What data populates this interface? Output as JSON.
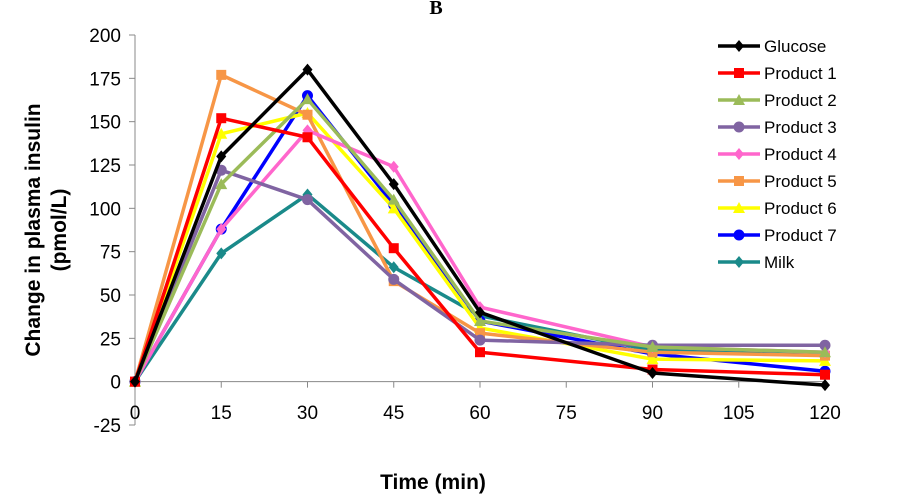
{
  "chart_data": {
    "type": "line",
    "panel_label": "B",
    "xlabel": "Time (min)",
    "ylabel_line1": "Change in plasma insulin",
    "ylabel_line2": "(pmol/L)",
    "x": [
      0,
      15,
      30,
      45,
      60,
      90,
      120
    ],
    "xticks": [
      0,
      15,
      30,
      45,
      60,
      75,
      90,
      105,
      120
    ],
    "yticks": [
      -25,
      0,
      25,
      50,
      75,
      100,
      125,
      150,
      175,
      200
    ],
    "xlim": [
      0,
      120
    ],
    "ylim": [
      -25,
      200
    ],
    "grid": false,
    "legend_position": "top-right",
    "series": [
      {
        "name": "Glucose",
        "color": "#000000",
        "marker": "diamond",
        "values": [
          0,
          130,
          180,
          114,
          40,
          5,
          -2
        ]
      },
      {
        "name": "Product 1",
        "color": "#ff0000",
        "marker": "square",
        "values": [
          0,
          152,
          141,
          77,
          17,
          7,
          4
        ]
      },
      {
        "name": "Product 2",
        "color": "#9bbb59",
        "marker": "triangle",
        "values": [
          0,
          114,
          163,
          105,
          35,
          20,
          17
        ]
      },
      {
        "name": "Product 3",
        "color": "#8064a2",
        "marker": "circle",
        "values": [
          0,
          122,
          105,
          59,
          24,
          21,
          21
        ]
      },
      {
        "name": "Product 4",
        "color": "#ff66cc",
        "marker": "diamond",
        "values": [
          0,
          88,
          145,
          124,
          43,
          20,
          17
        ]
      },
      {
        "name": "Product 5",
        "color": "#f79646",
        "marker": "square",
        "values": [
          0,
          177,
          154,
          58,
          28,
          17,
          15
        ]
      },
      {
        "name": "Product 6",
        "color": "#ffff00",
        "marker": "triangle",
        "values": [
          0,
          143,
          155,
          100,
          31,
          13,
          12
        ]
      },
      {
        "name": "Product 7",
        "color": "#0000ff",
        "marker": "circle",
        "values": [
          0,
          88,
          165,
          102,
          35,
          16,
          6
        ]
      },
      {
        "name": "Milk",
        "color": "#1a8a8a",
        "marker": "diamond",
        "values": [
          0,
          74,
          108,
          66,
          38,
          18,
          16
        ]
      }
    ]
  }
}
